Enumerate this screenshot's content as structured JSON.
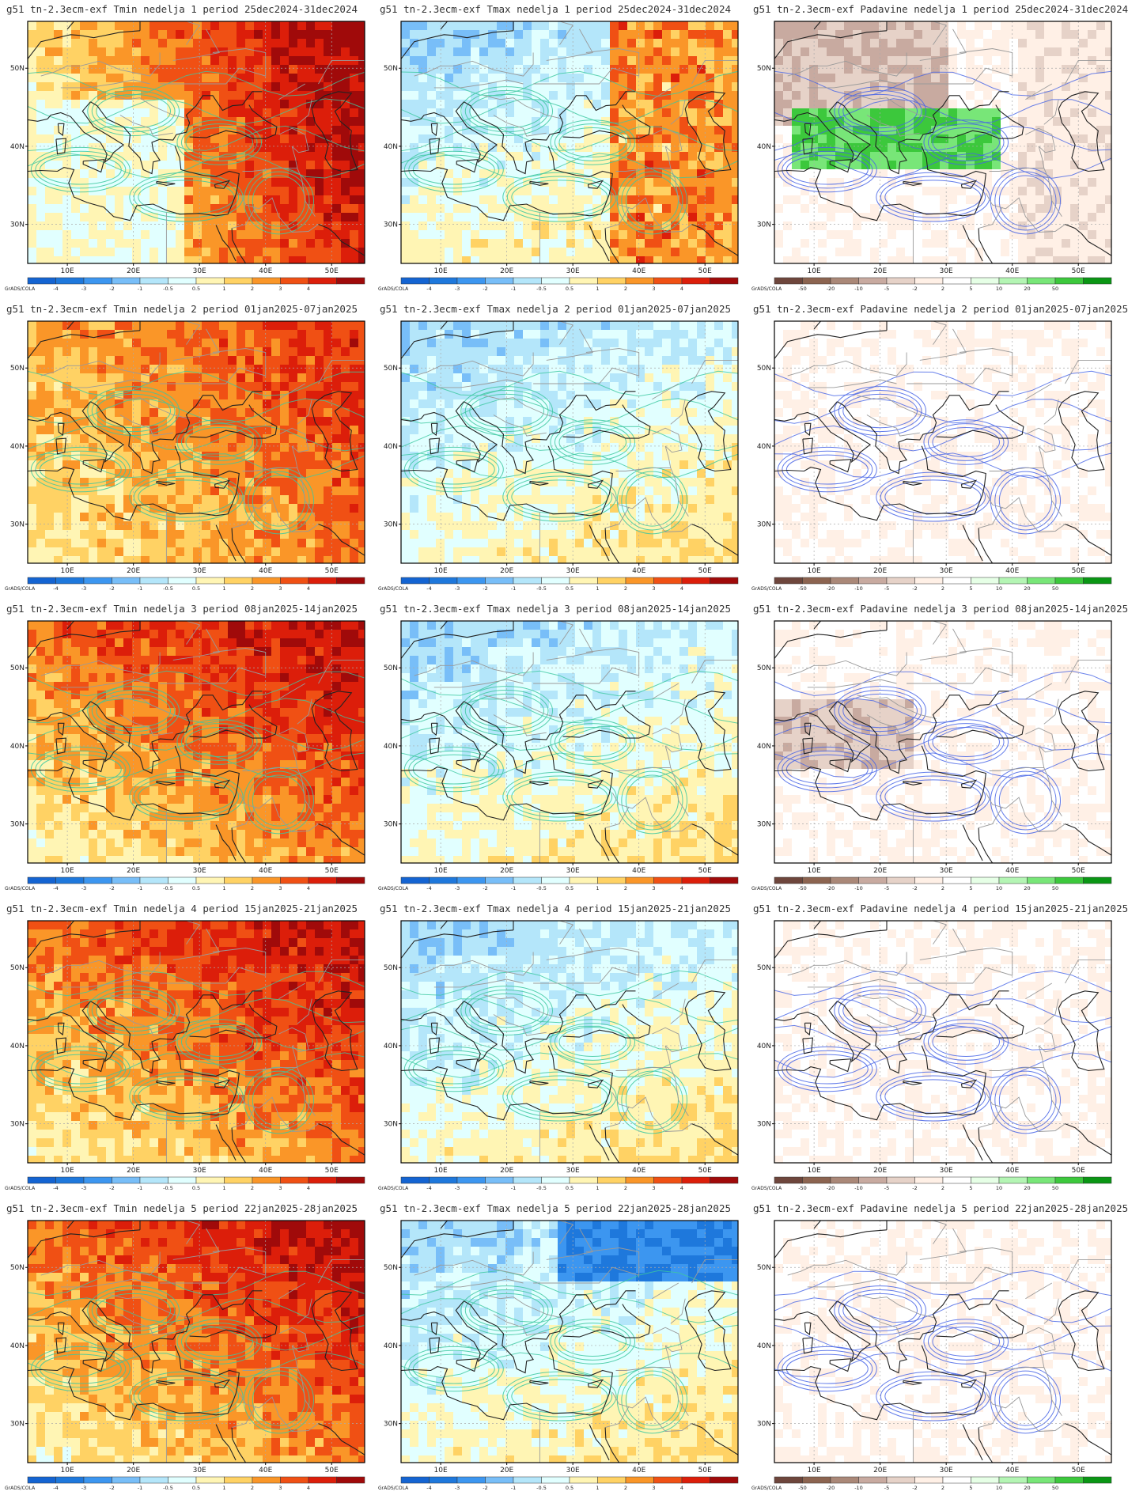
{
  "model_prefix": "g51 tn-2.3ecm-exf",
  "variables": [
    "Tmin",
    "Tmax",
    "Padavine"
  ],
  "week_word": "nedelja",
  "period_word": "period",
  "weeks": [
    {
      "num": "1",
      "period": "25dec2024-31dec2024"
    },
    {
      "num": "2",
      "period": "01jan2025-07jan2025"
    },
    {
      "num": "3",
      "period": "08jan2025-14jan2025"
    },
    {
      "num": "4",
      "period": "15jan2025-21jan2025"
    },
    {
      "num": "5",
      "period": "22jan2025-28jan2025"
    }
  ],
  "panels": [
    {
      "title": "g51 tn-2.3ecm-exf Tmin nedelja 1 period 25dec2024-31dec2024",
      "variable": "Tmin",
      "week": 1
    },
    {
      "title": "g51 tn-2.3ecm-exf Tmax nedelja 1 period 25dec2024-31dec2024",
      "variable": "Tmax",
      "week": 1
    },
    {
      "title": "g51 tn-2.3ecm-exf Padavine nedelja 1 period 25dec2024-31dec2024",
      "variable": "Padavine",
      "week": 1
    },
    {
      "title": "g51 tn-2.3ecm-exf Tmin nedelja 2 period 01jan2025-07jan2025",
      "variable": "Tmin",
      "week": 2
    },
    {
      "title": "g51 tn-2.3ecm-exf Tmax nedelja 2 period 01jan2025-07jan2025",
      "variable": "Tmax",
      "week": 2
    },
    {
      "title": "g51 tn-2.3ecm-exf Padavine nedelja 2 period 01jan2025-07jan2025",
      "variable": "Padavine",
      "week": 2
    },
    {
      "title": "g51 tn-2.3ecm-exf Tmin nedelja 3 period 08jan2025-14jan2025",
      "variable": "Tmin",
      "week": 3
    },
    {
      "title": "g51 tn-2.3ecm-exf Tmax nedelja 3 period 08jan2025-14jan2025",
      "variable": "Tmax",
      "week": 3
    },
    {
      "title": "g51 tn-2.3ecm-exf Padavine nedelja 3 period 08jan2025-14jan2025",
      "variable": "Padavine",
      "week": 3
    },
    {
      "title": "g51 tn-2.3ecm-exf Tmin nedelja 4 period 15jan2025-21jan2025",
      "variable": "Tmin",
      "week": 4
    },
    {
      "title": "g51 tn-2.3ecm-exf Tmax nedelja 4 period 15jan2025-21jan2025",
      "variable": "Tmax",
      "week": 4
    },
    {
      "title": "g51 tn-2.3ecm-exf Padavine nedelja 4 period 15jan2025-21jan2025",
      "variable": "Padavine",
      "week": 4
    },
    {
      "title": "g51 tn-2.3ecm-exf Tmin nedelja 5 period 22jan2025-28jan2025",
      "variable": "Tmin",
      "week": 5
    },
    {
      "title": "g51 tn-2.3ecm-exf Tmax nedelja 5 period 22jan2025-28jan2025",
      "variable": "Tmax",
      "week": 5
    },
    {
      "title": "g51 tn-2.3ecm-exf Padavine nedelja 5 period 22jan2025-28jan2025",
      "variable": "Padavine",
      "week": 5
    }
  ],
  "axes": {
    "lon_labels": [
      "10E",
      "20E",
      "30E",
      "40E",
      "50E"
    ],
    "lat_labels": [
      "50N",
      "40N",
      "30N"
    ]
  },
  "colorbar": {
    "credit": "GrADS/COLA",
    "temp_labels": [
      "-4",
      "-3",
      "-2",
      "-1",
      "-0.5",
      "0.5",
      "1",
      "2",
      "3",
      "4"
    ],
    "temp_colors": [
      "#1464d2",
      "#1e78dc",
      "#3c96f0",
      "#78bef8",
      "#b4e6fa",
      "#e1ffff",
      "#fff5b4",
      "#ffd264",
      "#fa9628",
      "#f05014",
      "#dc1e0a",
      "#a00a0a"
    ],
    "precip_labels": [
      "-50",
      "-20",
      "-10",
      "-5",
      "-2",
      "2",
      "5",
      "10",
      "20",
      "50"
    ],
    "precip_colors": [
      "#6e463c",
      "#8c6450",
      "#aa8878",
      "#c8aaa0",
      "#e6d2c8",
      "#fff0e6",
      "#ffffff",
      "#e6ffe6",
      "#b4f5b4",
      "#78e678",
      "#3cc83c",
      "#0a9614"
    ]
  },
  "contour_colors": {
    "temperature": "#3cc8a0",
    "precipitation": "#4664e6",
    "coastline": "#222222",
    "borders": "#9a9a9a"
  }
}
